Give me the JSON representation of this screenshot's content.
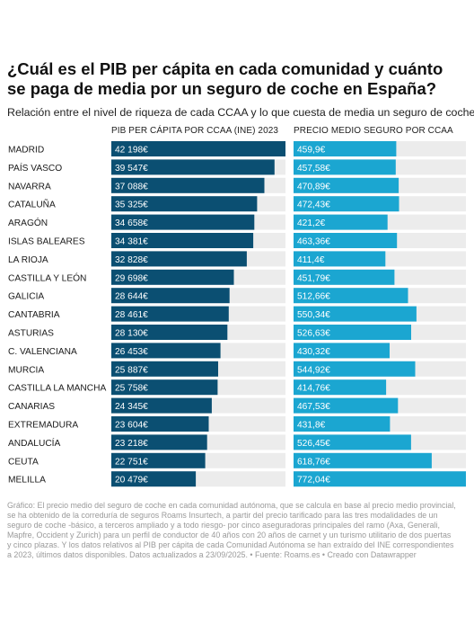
{
  "title": "¿Cuál es el PIB per cápita en cada comunidad y cuánto se paga de media por un seguro de coche en España?",
  "subtitle": "Relación entre el nivel de riqueza de cada CCAA y lo que cuesta de media un seguro de coche",
  "footer": "Gráfico: El precio medio del seguro de coche en cada comunidad autónoma, que se calcula en base al precio medio provincial, se ha obtenido de la correduría de seguros Roams Insurtech, a partir del precio tarificado para las tres modalidades de un seguro de coche -básico, a terceros ampliado y a todo riesgo- por cinco aseguradoras principales del ramo (Axa, Generali, Mapfre, Occident y Zurich) para un perfil de conductor de 40 años con 20 años de carnet y un turismo utilitario de dos puertas y cinco plazas. Y los datos relativos al PIB per cápita de cada Comunidad Autónoma se han extraído del INE correspondientes a 2023, últimos datos disponibles. Datos actualizados a 23/09/2025. • Fuente: Roams.es • Creado con Datawrapper",
  "colors": {
    "pib_bar": "#0b4f72",
    "seguro_bar": "#1ba6d1",
    "track": "#ececec",
    "label_text": "#ffffff"
  },
  "chart_data": {
    "type": "bar",
    "orientation": "horizontal",
    "categories": [
      "MADRID",
      "PAÍS VASCO",
      "NAVARRA",
      "CATALUÑA",
      "ARAGÓN",
      "ISLAS BALEARES",
      "LA RIOJA",
      "CASTILLA Y LEÓN",
      "GALICIA",
      "CANTABRIA",
      "ASTURIAS",
      "C. VALENCIANA",
      "MURCIA",
      "CASTILLA LA MANCHA",
      "CANARIAS",
      "EXTREMADURA",
      "ANDALUCÍA",
      "CEUTA",
      "MELILLA"
    ],
    "series": [
      {
        "name": "PIB PER CÁPITA POR CCAA (INE) 2023",
        "values": [
          42198,
          39547,
          37088,
          35325,
          34658,
          34381,
          32828,
          29698,
          28644,
          28461,
          28130,
          26453,
          25887,
          25758,
          24345,
          23604,
          23218,
          22751,
          20479
        ],
        "labels": [
          "42 198€",
          "39 547€",
          "37 088€",
          "35 325€",
          "34 658€",
          "34 381€",
          "32 828€",
          "29 698€",
          "28 644€",
          "28 461€",
          "28 130€",
          "26 453€",
          "25 887€",
          "25 758€",
          "24 345€",
          "23 604€",
          "23 218€",
          "22 751€",
          "20 479€"
        ],
        "max": 42198
      },
      {
        "name": "PRECIO MEDIO SEGURO POR CCAA",
        "values": [
          459.9,
          457.58,
          470.89,
          472.43,
          421.2,
          463.36,
          411.4,
          451.79,
          512.66,
          550.34,
          526.63,
          430.32,
          544.92,
          414.76,
          467.53,
          431.8,
          526.45,
          618.76,
          772.04
        ],
        "labels": [
          "459,9€",
          "457,58€",
          "470,89€",
          "472,43€",
          "421,2€",
          "463,36€",
          "411,4€",
          "451,79€",
          "512,66€",
          "550,34€",
          "526,63€",
          "430,32€",
          "544,92€",
          "414,76€",
          "467,53€",
          "431,8€",
          "526,45€",
          "618,76€",
          "772,04€"
        ],
        "max": 772.04
      }
    ]
  }
}
